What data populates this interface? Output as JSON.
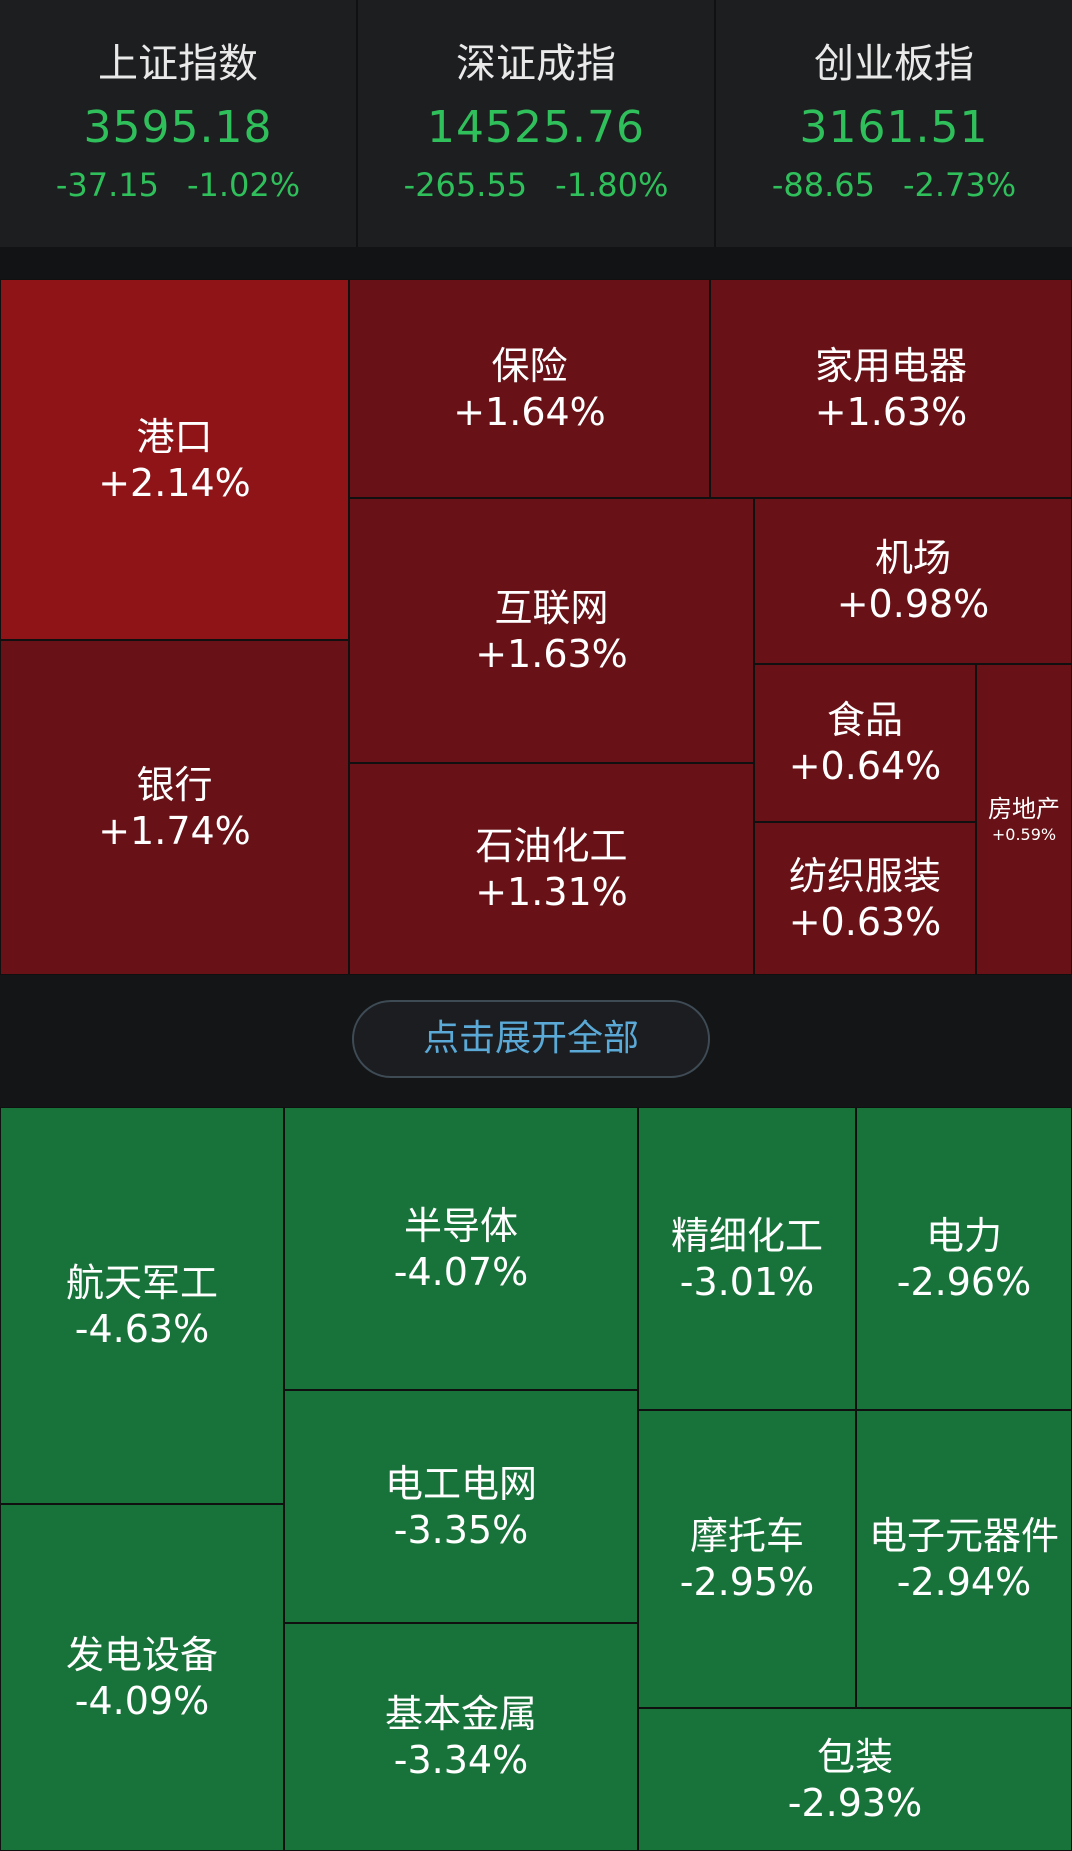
{
  "indices": [
    {
      "name": "上证指数",
      "value": "3595.18",
      "change": "-37.15",
      "pct": "-1.02%"
    },
    {
      "name": "深证成指",
      "value": "14525.76",
      "change": "-265.55",
      "pct": "-1.80%"
    },
    {
      "name": "创业板指",
      "value": "3161.51",
      "change": "-88.65",
      "pct": "-2.73%"
    }
  ],
  "colors": {
    "up_strong": "#8e1418",
    "up": "#681117",
    "down": "#17733a",
    "index_down_text": "#2fbf5b",
    "expand_text": "#5aa9d6"
  },
  "gainers": [
    {
      "name": "港口",
      "pct": "+2.14%"
    },
    {
      "name": "保险",
      "pct": "+1.64%"
    },
    {
      "name": "家用电器",
      "pct": "+1.63%"
    },
    {
      "name": "互联网",
      "pct": "+1.63%"
    },
    {
      "name": "机场",
      "pct": "+0.98%"
    },
    {
      "name": "银行",
      "pct": "+1.74%"
    },
    {
      "name": "食品",
      "pct": "+0.64%"
    },
    {
      "name": "石油化工",
      "pct": "+1.31%"
    },
    {
      "name": "房地产",
      "pct": "+0.59%"
    },
    {
      "name": "纺织服装",
      "pct": "+0.63%"
    }
  ],
  "expand_label": "点击展开全部",
  "losers": [
    {
      "name": "航天军工",
      "pct": "-4.63%"
    },
    {
      "name": "半导体",
      "pct": "-4.07%"
    },
    {
      "name": "精细化工",
      "pct": "-3.01%"
    },
    {
      "name": "电力",
      "pct": "-2.96%"
    },
    {
      "name": "电工电网",
      "pct": "-3.35%"
    },
    {
      "name": "摩托车",
      "pct": "-2.95%"
    },
    {
      "name": "电子元器件",
      "pct": "-2.94%"
    },
    {
      "name": "发电设备",
      "pct": "-4.09%"
    },
    {
      "name": "基本金属",
      "pct": "-3.34%"
    },
    {
      "name": "包装",
      "pct": "-2.93%"
    }
  ]
}
